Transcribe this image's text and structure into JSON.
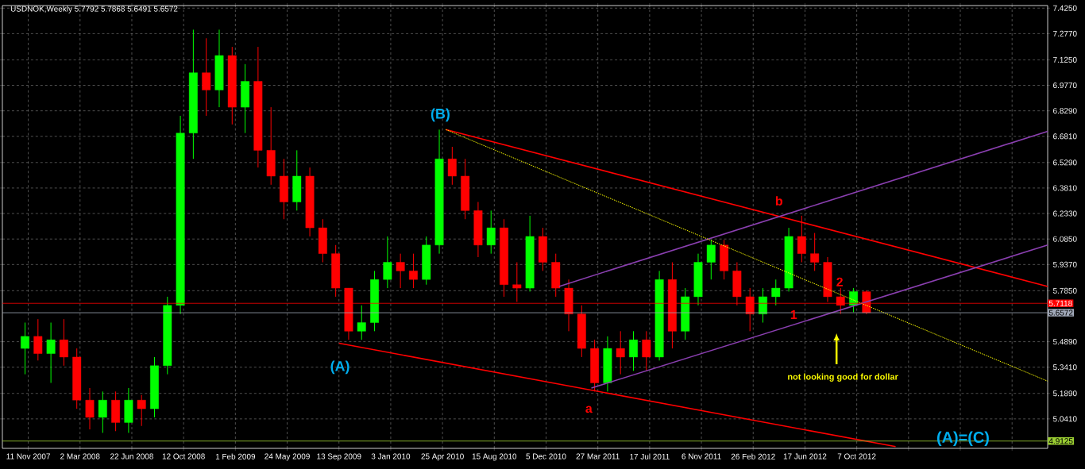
{
  "chart_data": {
    "type": "candlestick",
    "title": "USDNOK,Weekly 5.7792 5.7868 5.6491 5.6572",
    "x": [
      "2007-11-04",
      "2007-12-02",
      "2007-12-30",
      "2008-01-27",
      "2008-02-24",
      "2008-03-23",
      "2008-04-20",
      "2008-05-18",
      "2008-06-15",
      "2008-07-13",
      "2008-08-10",
      "2008-09-07",
      "2008-10-05",
      "2008-11-02",
      "2008-11-30",
      "2008-12-28",
      "2009-01-25",
      "2009-02-22",
      "2009-03-22",
      "2009-04-19",
      "2009-05-17",
      "2009-06-14",
      "2009-07-12",
      "2009-08-09",
      "2009-09-06",
      "2009-10-04",
      "2009-11-01",
      "2009-11-29",
      "2009-12-27",
      "2010-01-24",
      "2010-02-21",
      "2010-03-21",
      "2010-04-18",
      "2010-05-16",
      "2010-06-13",
      "2010-07-11",
      "2010-08-08",
      "2010-09-05",
      "2010-10-03",
      "2010-10-31",
      "2010-11-28",
      "2010-12-26",
      "2011-01-23",
      "2011-02-20",
      "2011-03-20",
      "2011-04-17",
      "2011-05-15",
      "2011-06-12",
      "2011-07-10",
      "2011-08-07",
      "2011-09-04",
      "2011-10-02",
      "2011-10-30",
      "2011-11-27",
      "2011-12-25",
      "2012-01-22",
      "2012-02-19",
      "2012-03-18",
      "2012-04-15",
      "2012-05-13",
      "2012-06-10",
      "2012-07-08",
      "2012-08-05",
      "2012-09-02",
      "2012-09-30",
      "2012-10-28"
    ],
    "ohlc": [
      [
        5.45,
        5.6,
        5.3,
        5.52
      ],
      [
        5.52,
        5.62,
        5.38,
        5.42
      ],
      [
        5.42,
        5.6,
        5.25,
        5.5
      ],
      [
        5.5,
        5.62,
        5.35,
        5.4
      ],
      [
        5.4,
        5.45,
        5.1,
        5.15
      ],
      [
        5.15,
        5.22,
        4.98,
        5.05
      ],
      [
        5.05,
        5.2,
        4.96,
        5.15
      ],
      [
        5.15,
        5.2,
        4.97,
        5.02
      ],
      [
        5.02,
        5.22,
        4.96,
        5.15
      ],
      [
        5.15,
        5.18,
        5.0,
        5.1
      ],
      [
        5.1,
        5.4,
        5.05,
        5.35
      ],
      [
        5.35,
        5.75,
        5.3,
        5.7
      ],
      [
        5.7,
        6.8,
        5.65,
        6.7
      ],
      [
        6.7,
        7.3,
        6.55,
        7.05
      ],
      [
        7.05,
        7.25,
        6.8,
        6.95
      ],
      [
        6.95,
        7.3,
        6.85,
        7.15
      ],
      [
        7.15,
        7.2,
        6.75,
        6.85
      ],
      [
        6.85,
        7.1,
        6.7,
        7.0
      ],
      [
        7.0,
        7.2,
        6.5,
        6.6
      ],
      [
        6.6,
        6.85,
        6.4,
        6.45
      ],
      [
        6.45,
        6.55,
        6.2,
        6.3
      ],
      [
        6.3,
        6.6,
        6.25,
        6.45
      ],
      [
        6.45,
        6.5,
        6.1,
        6.15
      ],
      [
        6.15,
        6.2,
        5.95,
        6.0
      ],
      [
        6.0,
        6.05,
        5.75,
        5.8
      ],
      [
        5.8,
        5.8,
        5.5,
        5.55
      ],
      [
        5.55,
        5.7,
        5.5,
        5.6
      ],
      [
        5.6,
        5.9,
        5.55,
        5.85
      ],
      [
        5.85,
        6.1,
        5.8,
        5.95
      ],
      [
        5.95,
        6.0,
        5.8,
        5.9
      ],
      [
        5.9,
        6.0,
        5.8,
        5.85
      ],
      [
        5.85,
        6.1,
        5.82,
        6.05
      ],
      [
        6.05,
        6.72,
        6.0,
        6.55
      ],
      [
        6.55,
        6.62,
        6.4,
        6.45
      ],
      [
        6.45,
        6.55,
        6.2,
        6.25
      ],
      [
        6.25,
        6.3,
        5.98,
        6.05
      ],
      [
        6.05,
        6.25,
        6.0,
        6.15
      ],
      [
        6.15,
        6.2,
        5.75,
        5.82
      ],
      [
        5.82,
        5.95,
        5.72,
        5.8
      ],
      [
        5.8,
        6.22,
        5.78,
        6.1
      ],
      [
        6.1,
        6.15,
        5.9,
        5.95
      ],
      [
        5.95,
        6.0,
        5.75,
        5.8
      ],
      [
        5.8,
        5.85,
        5.55,
        5.65
      ],
      [
        5.65,
        5.7,
        5.4,
        5.45
      ],
      [
        5.45,
        5.5,
        5.2,
        5.25
      ],
      [
        5.25,
        5.52,
        5.2,
        5.45
      ],
      [
        5.45,
        5.55,
        5.3,
        5.4
      ],
      [
        5.4,
        5.55,
        5.32,
        5.5
      ],
      [
        5.5,
        5.55,
        5.32,
        5.4
      ],
      [
        5.4,
        5.9,
        5.38,
        5.85
      ],
      [
        5.85,
        5.95,
        5.45,
        5.55
      ],
      [
        5.55,
        5.8,
        5.5,
        5.75
      ],
      [
        5.75,
        6.0,
        5.7,
        5.95
      ],
      [
        5.95,
        6.08,
        5.85,
        6.05
      ],
      [
        6.05,
        6.08,
        5.85,
        5.9
      ],
      [
        5.9,
        5.95,
        5.7,
        5.75
      ],
      [
        5.75,
        5.8,
        5.55,
        5.65
      ],
      [
        5.65,
        5.8,
        5.6,
        5.75
      ],
      [
        5.75,
        5.85,
        5.7,
        5.8
      ],
      [
        5.8,
        6.15,
        5.78,
        6.1
      ],
      [
        6.1,
        6.22,
        5.95,
        6.0
      ],
      [
        6.0,
        6.12,
        5.9,
        5.95
      ],
      [
        5.95,
        5.98,
        5.72,
        5.75
      ],
      [
        5.75,
        5.8,
        5.65,
        5.7
      ],
      [
        5.7,
        5.8,
        5.66,
        5.78
      ],
      [
        5.7792,
        5.7868,
        5.6491,
        5.6572
      ]
    ],
    "colors": [
      "#00ff00",
      "#ff0000",
      "#00ff00",
      "#ff0000",
      "#ff0000",
      "#ff0000",
      "#00ff00",
      "#ff0000",
      "#00ff00",
      "#ff0000",
      "#00ff00",
      "#00ff00",
      "#00ff00",
      "#00ff00",
      "#ff0000",
      "#00ff00",
      "#ff0000",
      "#00ff00",
      "#ff0000",
      "#ff0000",
      "#ff0000",
      "#00ff00",
      "#ff0000",
      "#ff0000",
      "#ff0000",
      "#ff0000",
      "#00ff00",
      "#00ff00",
      "#00ff00",
      "#ff0000",
      "#ff0000",
      "#00ff00",
      "#00ff00",
      "#ff0000",
      "#ff0000",
      "#ff0000",
      "#00ff00",
      "#ff0000",
      "#ff0000",
      "#00ff00",
      "#ff0000",
      "#ff0000",
      "#ff0000",
      "#ff0000",
      "#ff0000",
      "#00ff00",
      "#ff0000",
      "#00ff00",
      "#ff0000",
      "#00ff00",
      "#ff0000",
      "#00ff00",
      "#00ff00",
      "#00ff00",
      "#ff0000",
      "#ff0000",
      "#ff0000",
      "#00ff00",
      "#00ff00",
      "#00ff00",
      "#ff0000",
      "#ff0000",
      "#ff0000",
      "#ff0000",
      "#00ff00",
      "#ff0000"
    ],
    "series": [
      {
        "type": "line",
        "color": "#ff0000",
        "x": [
          "2010-05-02",
          "2013-11-24"
        ],
        "values": [
          6.72,
          5.81
        ]
      },
      {
        "type": "line",
        "color": "#ff0000",
        "x": [
          "2009-09-13",
          "2012-12-30"
        ],
        "values": [
          5.48,
          4.88
        ]
      },
      {
        "type": "line",
        "color": "#8a3fb0",
        "x": [
          "2011-01-02",
          "2013-11-24"
        ],
        "values": [
          5.81,
          6.71
        ]
      },
      {
        "type": "line",
        "color": "#8a3fb0",
        "x": [
          "2011-03-13",
          "2013-11-24"
        ],
        "values": [
          5.22,
          6.05
        ]
      },
      {
        "type": "line",
        "color": "#ffff00",
        "line_style": "dotted",
        "x": [
          "2010-05-02",
          "2013-11-24"
        ],
        "values": [
          6.72,
          5.26
        ]
      }
    ],
    "ref_lines": [
      {
        "axis": "y",
        "value": 5.7118,
        "label": "5.7118",
        "color": "#ff0000"
      },
      {
        "axis": "y",
        "value": 5.6572,
        "label": "5.6572",
        "color": "#a0a8b8"
      },
      {
        "axis": "y",
        "value": 4.9125,
        "label": "4.9125",
        "color": "#9acd32"
      }
    ],
    "annotations": [
      "(B)",
      "(A)",
      "a",
      "b",
      "1",
      "2",
      "not looking good for dollar",
      "(A)=(C)"
    ],
    "xlim": [
      "2007-09-16",
      "2013-11-24"
    ],
    "ylim": [
      4.87,
      7.44
    ],
    "xticks": [
      {
        "value": "2007-11-11",
        "label": "11 Nov 2007"
      },
      {
        "value": "2008-03-02",
        "label": "2 Mar 2008"
      },
      {
        "value": "2008-06-22",
        "label": "22 Jun 2008"
      },
      {
        "value": "2008-10-12",
        "label": "12 Oct 2008"
      },
      {
        "value": "2009-02-01",
        "label": "1 Feb 2009"
      },
      {
        "value": "2009-05-24",
        "label": "24 May 2009"
      },
      {
        "value": "2009-09-13",
        "label": "13 Sep 2009"
      },
      {
        "value": "2010-01-03",
        "label": "3 Jan 2010"
      },
      {
        "value": "2010-04-25",
        "label": "25 Apr 2010"
      },
      {
        "value": "2010-08-15",
        "label": "15 Aug 2010"
      },
      {
        "value": "2010-12-05",
        "label": "5 Dec 2010"
      },
      {
        "value": "2011-03-27",
        "label": "27 Mar 2011"
      },
      {
        "value": "2011-07-17",
        "label": "17 Jul 2011"
      },
      {
        "value": "2011-11-06",
        "label": "6 Nov 2011"
      },
      {
        "value": "2012-02-26",
        "label": "26 Feb 2012"
      },
      {
        "value": "2012-06-17",
        "label": "17 Jun 2012"
      },
      {
        "value": "2012-10-07",
        "label": "7 Oct 2012"
      },
      {
        "value": "2013-01-27",
        "label": null
      },
      {
        "value": "2013-05-19",
        "label": null
      },
      {
        "value": "2013-09-08",
        "label": null
      }
    ],
    "yticks": [
      {
        "value": 7.425,
        "label": "7.4250"
      },
      {
        "value": 7.277,
        "label": "7.2770"
      },
      {
        "value": 7.125,
        "label": "7.1250"
      },
      {
        "value": 6.977,
        "label": "6.9770"
      },
      {
        "value": 6.829,
        "label": "6.8290"
      },
      {
        "value": 6.681,
        "label": "6.6810"
      },
      {
        "value": 6.529,
        "label": "6.5290"
      },
      {
        "value": 6.381,
        "label": "6.3810"
      },
      {
        "value": 6.233,
        "label": "6.2330"
      },
      {
        "value": 6.085,
        "label": "6.0850"
      },
      {
        "value": 5.937,
        "label": "5.9370"
      },
      {
        "value": 5.785,
        "label": "5.7850"
      },
      {
        "value": 5.489,
        "label": "5.4890"
      },
      {
        "value": 5.341,
        "label": "5.3410"
      },
      {
        "value": 5.189,
        "label": "5.1890"
      },
      {
        "value": 5.041,
        "label": "5.0410"
      }
    ],
    "grid": true
  }
}
